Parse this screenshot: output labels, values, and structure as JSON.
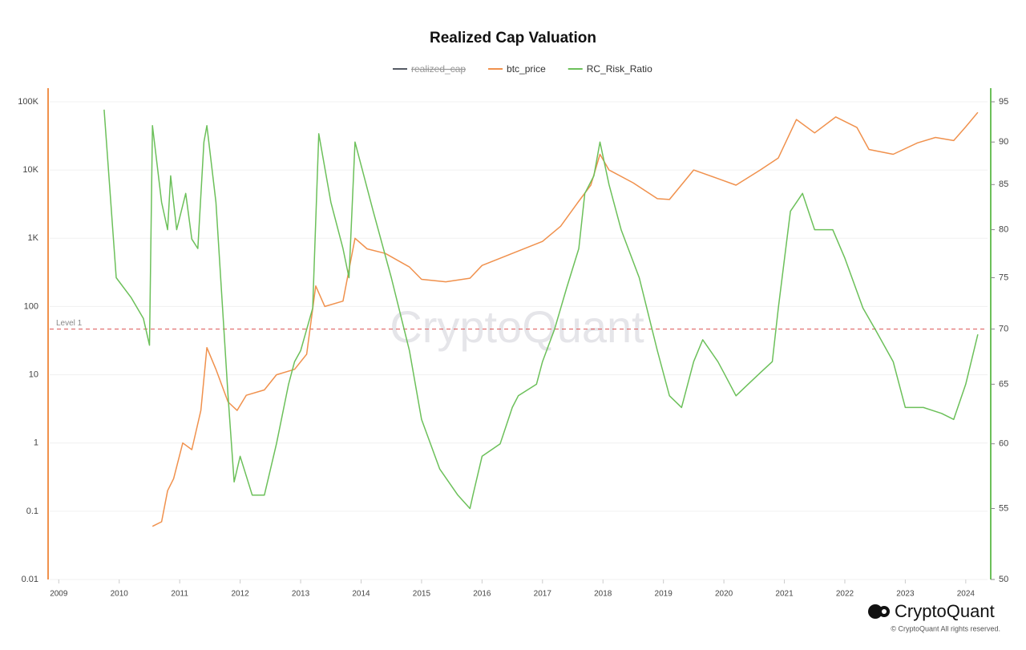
{
  "chart_data": {
    "type": "line",
    "title": "Realized Cap Valuation",
    "log_y": true,
    "log_y2": true,
    "grid": true,
    "legend": "top",
    "xlim": [
      2008.85,
      2024.36
    ],
    "xticks": [
      2009,
      2010,
      2011,
      2012,
      2013,
      2014,
      2015,
      2016,
      2017,
      2018,
      2019,
      2020,
      2021,
      2022,
      2023,
      2024
    ],
    "ylim": [
      0.01,
      100000
    ],
    "yticks": [
      {
        "value": 100000,
        "label": "100K"
      },
      {
        "value": 10000,
        "label": "10K"
      },
      {
        "value": 1000,
        "label": "1K"
      },
      100,
      10,
      1,
      0.1,
      0.01
    ],
    "y2lim": [
      50,
      95
    ],
    "y2ticks": [
      50,
      55,
      60,
      65,
      70,
      75,
      80,
      85,
      90,
      95
    ],
    "series": [
      {
        "name": "realized_cap",
        "color": "#555a64",
        "hidden": true
      },
      {
        "name": "btc_price",
        "color": "#f0914d",
        "x": [
          2010.55,
          2010.7,
          2010.8,
          2010.9,
          2011.05,
          2011.2,
          2011.35,
          2011.45,
          2011.6,
          2011.8,
          2011.95,
          2012.1,
          2012.4,
          2012.6,
          2012.9,
          2013.1,
          2013.25,
          2013.4,
          2013.7,
          2013.9,
          2014.1,
          2014.4,
          2014.8,
          2015.0,
          2015.4,
          2015.8,
          2016.0,
          2016.5,
          2017.0,
          2017.3,
          2017.6,
          2017.8,
          2017.95,
          2018.1,
          2018.5,
          2018.9,
          2019.1,
          2019.5,
          2019.9,
          2020.2,
          2020.6,
          2020.9,
          2021.2,
          2021.5,
          2021.85,
          2022.2,
          2022.4,
          2022.8,
          2023.2,
          2023.5,
          2023.8,
          2024.0,
          2024.2
        ],
        "values": [
          0.06,
          0.07,
          0.2,
          0.3,
          1,
          0.8,
          3,
          25,
          12,
          4,
          3,
          5,
          6,
          10,
          12,
          20,
          200,
          100,
          120,
          1000,
          700,
          600,
          380,
          250,
          230,
          260,
          400,
          600,
          900,
          1500,
          3500,
          6000,
          17000,
          10000,
          6500,
          3800,
          3700,
          10000,
          7500,
          6000,
          10000,
          15000,
          55000,
          35000,
          60000,
          42000,
          20000,
          17000,
          25000,
          30000,
          27000,
          43000,
          70000
        ]
      },
      {
        "name": "RC_Risk_Ratio",
        "color": "#6cc05a",
        "axis": "y2",
        "x": [
          2009.75,
          2009.95,
          2010.2,
          2010.4,
          2010.5,
          2010.55,
          2010.7,
          2010.8,
          2010.85,
          2010.95,
          2011.1,
          2011.2,
          2011.3,
          2011.4,
          2011.45,
          2011.6,
          2011.8,
          2011.9,
          2012.0,
          2012.2,
          2012.4,
          2012.6,
          2012.8,
          2012.9,
          2013.0,
          2013.2,
          2013.3,
          2013.5,
          2013.7,
          2013.8,
          2013.9,
          2014.2,
          2014.5,
          2014.8,
          2015.0,
          2015.3,
          2015.6,
          2015.8,
          2015.85,
          2016.0,
          2016.3,
          2016.5,
          2016.6,
          2016.9,
          2017.0,
          2017.2,
          2017.4,
          2017.6,
          2017.7,
          2017.85,
          2017.95,
          2018.1,
          2018.3,
          2018.6,
          2018.9,
          2019.1,
          2019.3,
          2019.5,
          2019.65,
          2019.9,
          2020.0,
          2020.2,
          2020.4,
          2020.6,
          2020.8,
          2020.9,
          2021.1,
          2021.3,
          2021.5,
          2021.8,
          2022.0,
          2022.3,
          2022.5,
          2022.8,
          2023.0,
          2023.3,
          2023.6,
          2023.8,
          2024.0,
          2024.2
        ],
        "values": [
          94,
          75,
          73,
          71,
          68.5,
          92,
          83,
          80,
          86,
          80,
          84,
          79,
          78,
          90,
          92,
          83,
          64,
          57,
          59,
          56,
          56,
          60,
          65,
          67,
          68,
          72,
          91,
          83,
          78,
          75,
          90,
          82,
          75,
          68,
          62,
          58,
          56,
          55,
          56,
          59,
          60,
          63,
          64,
          65,
          67,
          70,
          74,
          78,
          84,
          86,
          90,
          85,
          80,
          75,
          68,
          64,
          63,
          67,
          69,
          67,
          66,
          64,
          65,
          66,
          67,
          72,
          82,
          84,
          80,
          80,
          77,
          72,
          70,
          67,
          63,
          63,
          62.5,
          62,
          65,
          69.5
        ]
      }
    ],
    "annotations": [
      {
        "text": "Level 1",
        "value": 70,
        "axis": "y2",
        "color": "#e06666"
      }
    ],
    "watermark": "CryptoQuant",
    "brand": "CryptoQuant",
    "copyright": "© CryptoQuant All rights reserved."
  }
}
